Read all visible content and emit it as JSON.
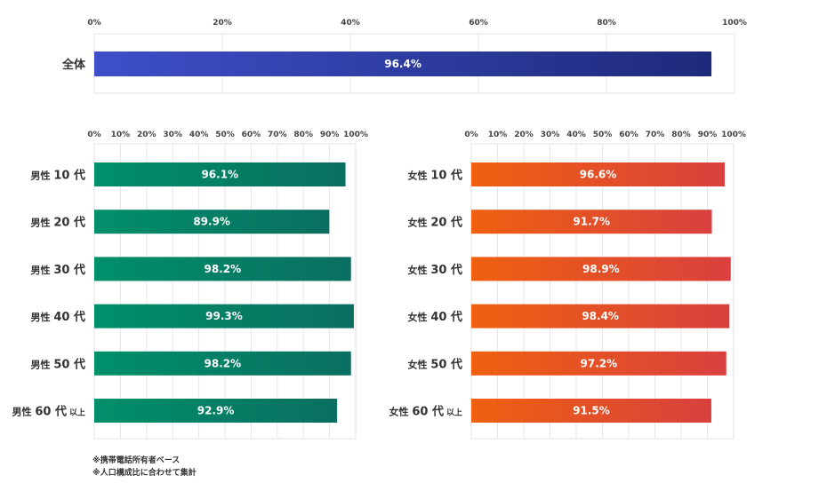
{
  "chart_data": [
    {
      "id": "overall",
      "type": "bar",
      "orientation": "horizontal",
      "categories": [
        "全体"
      ],
      "values": [
        96.4
      ],
      "value_labels": [
        "96.4%"
      ],
      "xlim": [
        0,
        100
      ],
      "ticks": [
        "0%",
        "20%",
        "40%",
        "60%",
        "80%",
        "100%"
      ],
      "color_start": "#3e4fc9",
      "color_end": "#1e2a7a"
    },
    {
      "id": "male",
      "type": "bar",
      "orientation": "horizontal",
      "categories": [
        {
          "prefix": "男性",
          "age": "10",
          "suffix": "代",
          "extra": ""
        },
        {
          "prefix": "男性",
          "age": "20",
          "suffix": "代",
          "extra": ""
        },
        {
          "prefix": "男性",
          "age": "30",
          "suffix": "代",
          "extra": ""
        },
        {
          "prefix": "男性",
          "age": "40",
          "suffix": "代",
          "extra": ""
        },
        {
          "prefix": "男性",
          "age": "50",
          "suffix": "代",
          "extra": ""
        },
        {
          "prefix": "男性",
          "age": "60",
          "suffix": "代",
          "extra": "以上"
        }
      ],
      "values": [
        96.1,
        89.9,
        98.2,
        99.3,
        98.2,
        92.9
      ],
      "value_labels": [
        "96.1%",
        "89.9%",
        "98.2%",
        "99.3%",
        "98.2%",
        "92.9%"
      ],
      "xlim": [
        0,
        100
      ],
      "ticks": [
        "0%",
        "10%",
        "20%",
        "30%",
        "40%",
        "50%",
        "60%",
        "70%",
        "80%",
        "90%",
        "100%"
      ],
      "color_start": "#00906a",
      "color_end": "#0a6e60"
    },
    {
      "id": "female",
      "type": "bar",
      "orientation": "horizontal",
      "categories": [
        {
          "prefix": "女性",
          "age": "10",
          "suffix": "代",
          "extra": ""
        },
        {
          "prefix": "女性",
          "age": "20",
          "suffix": "代",
          "extra": ""
        },
        {
          "prefix": "女性",
          "age": "30",
          "suffix": "代",
          "extra": ""
        },
        {
          "prefix": "女性",
          "age": "40",
          "suffix": "代",
          "extra": ""
        },
        {
          "prefix": "女性",
          "age": "50",
          "suffix": "代",
          "extra": ""
        },
        {
          "prefix": "女性",
          "age": "60",
          "suffix": "代",
          "extra": "以上"
        }
      ],
      "values": [
        96.6,
        91.7,
        98.9,
        98.4,
        97.2,
        91.5
      ],
      "value_labels": [
        "96.6%",
        "91.7%",
        "98.9%",
        "98.4%",
        "97.2%",
        "91.5%"
      ],
      "xlim": [
        0,
        100
      ],
      "ticks": [
        "0%",
        "10%",
        "20%",
        "30%",
        "40%",
        "50%",
        "60%",
        "70%",
        "80%",
        "90%",
        "100%"
      ],
      "color_start": "#ef6010",
      "color_end": "#d9403e"
    }
  ],
  "notes": [
    "※携帯電話所有者ベース",
    "※人口構成比に合わせて集計"
  ]
}
